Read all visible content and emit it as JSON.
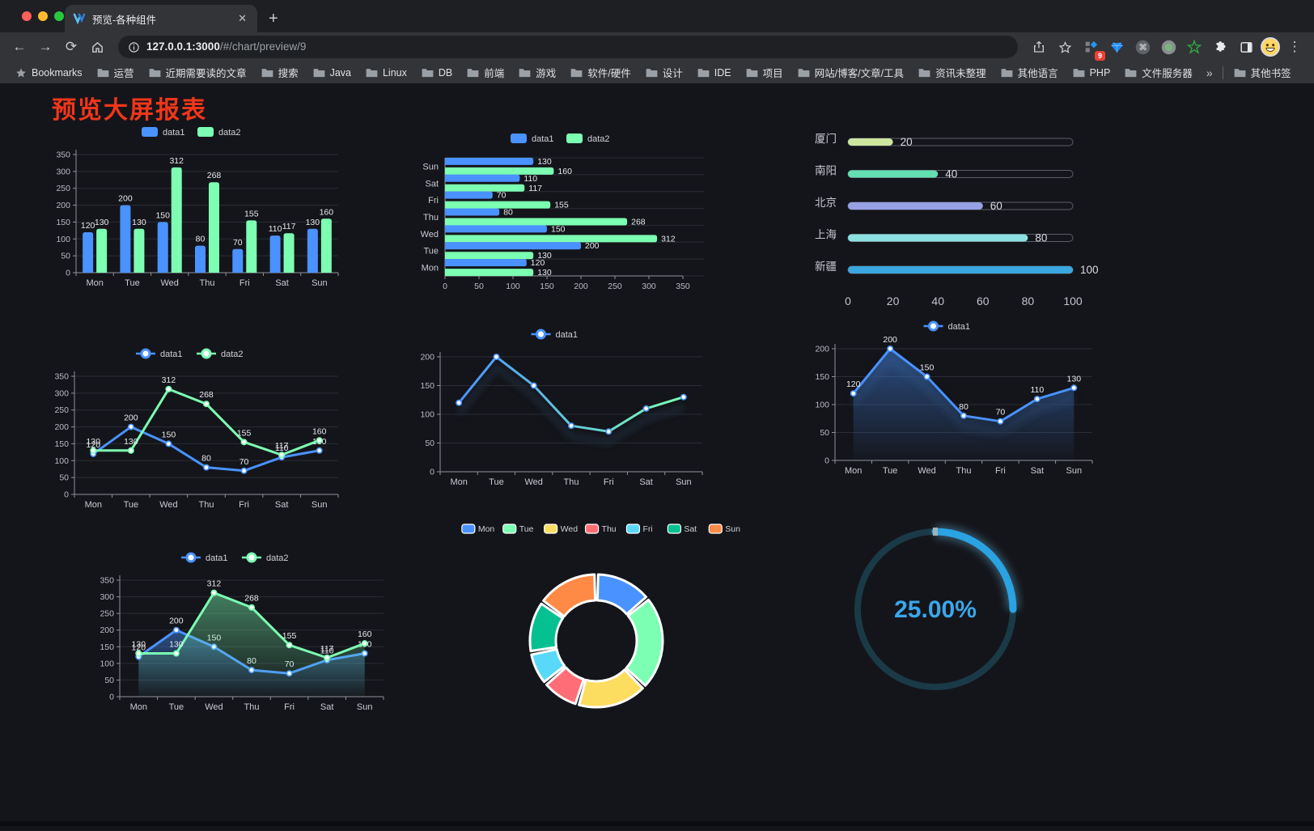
{
  "browser": {
    "tab": {
      "title": "预览-各种组件",
      "close_glyph": "✕",
      "new_tab_glyph": "+"
    },
    "nav": {
      "back_glyph": "←",
      "forward_glyph": "→",
      "reload_glyph": "⟳",
      "menu_glyph": "⋮"
    },
    "url": {
      "host": "127.0.0.1:3000",
      "path": "/#/chart/preview/9"
    },
    "extension_badge": "9",
    "bookmarks_label": "Bookmarks",
    "bookmarks": [
      "运营",
      "近期需要读的文章",
      "搜索",
      "Java",
      "Linux",
      "DB",
      "前端",
      "游戏",
      "软件/硬件",
      "设计",
      "IDE",
      "项目",
      "网站/博客/文章/工具",
      "资讯未整理",
      "其他语言",
      "PHP",
      "文件服务器"
    ],
    "bookmarks_overflow": "»",
    "other_bookmarks": "其他书签"
  },
  "page": {
    "title": "预览大屏报表",
    "title_color": "#f2361a",
    "background": "#14151a"
  },
  "palette": {
    "data1": "#4992ff",
    "data2": "#7cffb2"
  },
  "chart_data": [
    {
      "type": "bar",
      "legend_style": "rect",
      "categories": [
        "Mon",
        "Tue",
        "Wed",
        "Thu",
        "Fri",
        "Sat",
        "Sun"
      ],
      "series": [
        {
          "name": "data1",
          "color": "#4992ff",
          "values": [
            120,
            200,
            150,
            80,
            70,
            110,
            130
          ]
        },
        {
          "name": "data2",
          "color": "#7cffb2",
          "values": [
            130,
            130,
            312,
            268,
            155,
            117,
            160
          ]
        }
      ],
      "ylim": [
        0,
        350
      ],
      "ytick": 50,
      "labels": true,
      "grid": true
    },
    {
      "type": "hbar",
      "legend_style": "rect",
      "categories": [
        "Mon",
        "Tue",
        "Wed",
        "Thu",
        "Fri",
        "Sat",
        "Sun"
      ],
      "series": [
        {
          "name": "data1",
          "color": "#4992ff",
          "values": [
            120,
            200,
            150,
            80,
            70,
            110,
            130
          ]
        },
        {
          "name": "data2",
          "color": "#7cffb2",
          "values": [
            130,
            130,
            312,
            268,
            155,
            117,
            160
          ]
        }
      ],
      "xlim": [
        0,
        350
      ],
      "xtick": 50,
      "labels": true,
      "grid": true
    },
    {
      "type": "progress",
      "items": [
        {
          "label": "厦门",
          "value": 20,
          "color": "#cde79f"
        },
        {
          "label": "南阳",
          "value": 40,
          "color": "#63dfb1"
        },
        {
          "label": "北京",
          "value": 60,
          "color": "#97a1e3"
        },
        {
          "label": "上海",
          "value": 80,
          "color": "#8ce0e0"
        },
        {
          "label": "新疆",
          "value": 100,
          "color": "#3aa7e0"
        }
      ],
      "xticks": [
        0,
        20,
        40,
        60,
        80,
        100
      ],
      "xlim": [
        0,
        100
      ]
    },
    {
      "type": "line",
      "legend_style": "line",
      "categories": [
        "Mon",
        "Tue",
        "Wed",
        "Thu",
        "Fri",
        "Sat",
        "Sun"
      ],
      "series": [
        {
          "name": "data1",
          "color": "#4992ff",
          "values": [
            120,
            200,
            150,
            80,
            70,
            110,
            130
          ]
        },
        {
          "name": "data2",
          "color": "#7cffb2",
          "values": [
            130,
            130,
            312,
            268,
            155,
            117,
            160
          ]
        }
      ],
      "ylim": [
        0,
        350
      ],
      "ytick": 50,
      "labels": true,
      "grid": true
    },
    {
      "type": "line",
      "legend_style": "line",
      "gradient": [
        "#4992ff",
        "#7cffb2"
      ],
      "shadow": true,
      "categories": [
        "Mon",
        "Tue",
        "Wed",
        "Thu",
        "Fri",
        "Sat",
        "Sun"
      ],
      "series": [
        {
          "name": "data1",
          "color": "#4992ff",
          "values": [
            120,
            200,
            150,
            80,
            70,
            110,
            130
          ]
        }
      ],
      "ylim": [
        0,
        200
      ],
      "ytick": 50,
      "labels": false,
      "grid": true
    },
    {
      "type": "area",
      "legend_style": "line",
      "shadow": true,
      "categories": [
        "Mon",
        "Tue",
        "Wed",
        "Thu",
        "Fri",
        "Sat",
        "Sun"
      ],
      "series": [
        {
          "name": "data1",
          "color": "#4992ff",
          "values": [
            120,
            200,
            150,
            80,
            70,
            110,
            130
          ]
        }
      ],
      "ylim": [
        0,
        200
      ],
      "ytick": 50,
      "labels": true,
      "grid": true
    },
    {
      "type": "area",
      "legend_style": "line",
      "categories": [
        "Mon",
        "Tue",
        "Wed",
        "Thu",
        "Fri",
        "Sat",
        "Sun"
      ],
      "series": [
        {
          "name": "data1",
          "color": "#4992ff",
          "values": [
            120,
            200,
            150,
            80,
            70,
            110,
            130
          ]
        },
        {
          "name": "data2",
          "color": "#7cffb2",
          "values": [
            130,
            130,
            312,
            268,
            155,
            117,
            160
          ]
        }
      ],
      "ylim": [
        0,
        350
      ],
      "ytick": 50,
      "labels": true,
      "grid": true
    },
    {
      "type": "donut",
      "labels": [
        "Mon",
        "Tue",
        "Wed",
        "Thu",
        "Fri",
        "Sat",
        "Sun"
      ],
      "values": [
        120,
        200,
        150,
        80,
        70,
        110,
        130
      ],
      "colors": [
        "#4992ff",
        "#7cffb2",
        "#fddd60",
        "#ff6e76",
        "#58d9f9",
        "#05c091",
        "#ff8a45"
      ],
      "legend_position": "top"
    },
    {
      "type": "gauge",
      "value": 25,
      "display": "25.00%",
      "color": "#29a3e2",
      "track_color": "#1a3a47",
      "text_color": "#3ba6ea"
    }
  ]
}
